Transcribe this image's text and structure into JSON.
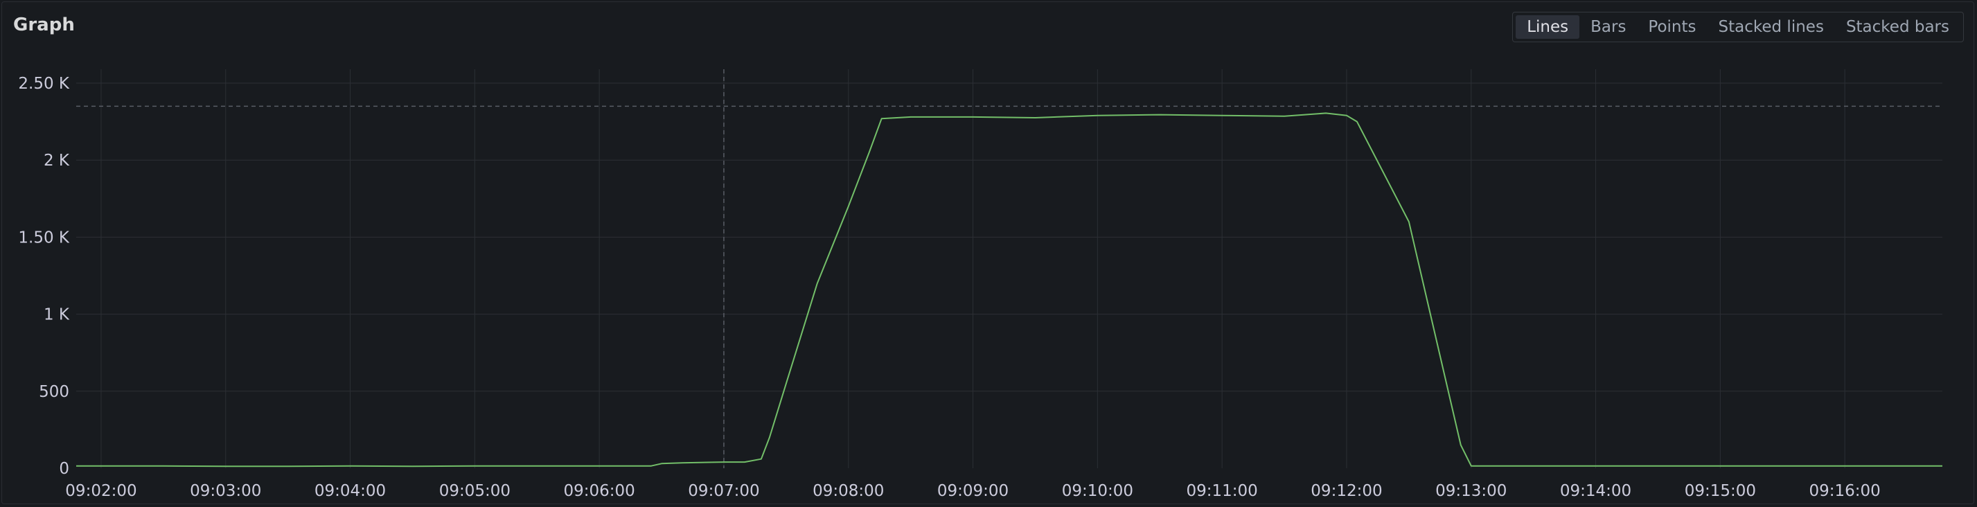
{
  "panel": {
    "title": "Graph",
    "buttons": [
      {
        "label": "Lines",
        "active": true
      },
      {
        "label": "Bars",
        "active": false
      },
      {
        "label": "Points",
        "active": false
      },
      {
        "label": "Stacked lines",
        "active": false
      },
      {
        "label": "Stacked bars",
        "active": false
      }
    ]
  },
  "colors": {
    "background": "#181b1f",
    "grid": "#2c2f35",
    "series": "#73bf69",
    "threshold_line": "#5a5e66"
  },
  "chart_data": {
    "type": "line",
    "title": "",
    "xlabel": "",
    "ylabel": "",
    "ylim": [
      0,
      2500
    ],
    "yticks": [
      0,
      500,
      1000,
      1500,
      2000,
      2500
    ],
    "ytick_labels": [
      "0",
      "500",
      "1 K",
      "1.50 K",
      "2 K",
      "2.50 K"
    ],
    "xlim": [
      "09:01:48",
      "09:16:47"
    ],
    "xticks": [
      "09:02:00",
      "09:03:00",
      "09:04:00",
      "09:05:00",
      "09:06:00",
      "09:07:00",
      "09:08:00",
      "09:09:00",
      "09:10:00",
      "09:11:00",
      "09:12:00",
      "09:13:00",
      "09:14:00",
      "09:15:00",
      "09:16:00"
    ],
    "grid": true,
    "legend": "none",
    "annotations": {
      "vertical_dashed_at": "09:07:00",
      "horizontal_dashed_at": 2350
    },
    "series": [
      {
        "x": [
          "09:01:48",
          "09:02:30",
          "09:03:00",
          "09:03:30",
          "09:04:00",
          "09:04:30",
          "09:05:00",
          "09:05:30",
          "09:06:00",
          "09:06:25",
          "09:06:30",
          "09:06:40",
          "09:07:00",
          "09:07:10",
          "09:07:18",
          "09:07:22",
          "09:07:30",
          "09:07:45",
          "09:08:00",
          "09:08:10",
          "09:08:16",
          "09:08:30",
          "09:09:00",
          "09:09:30",
          "09:10:00",
          "09:10:30",
          "09:11:00",
          "09:11:30",
          "09:11:50",
          "09:12:00",
          "09:12:05",
          "09:12:30",
          "09:12:55",
          "09:13:00",
          "09:13:10",
          "09:13:30",
          "09:14:00",
          "09:15:00",
          "09:16:00",
          "09:16:47"
        ],
        "values": [
          15,
          15,
          12,
          12,
          15,
          12,
          15,
          15,
          15,
          15,
          30,
          35,
          40,
          40,
          60,
          200,
          550,
          1200,
          1700,
          2050,
          2270,
          2280,
          2280,
          2275,
          2290,
          2295,
          2290,
          2285,
          2305,
          2290,
          2250,
          1600,
          150,
          15,
          15,
          15,
          15,
          15,
          15,
          15
        ]
      }
    ]
  }
}
